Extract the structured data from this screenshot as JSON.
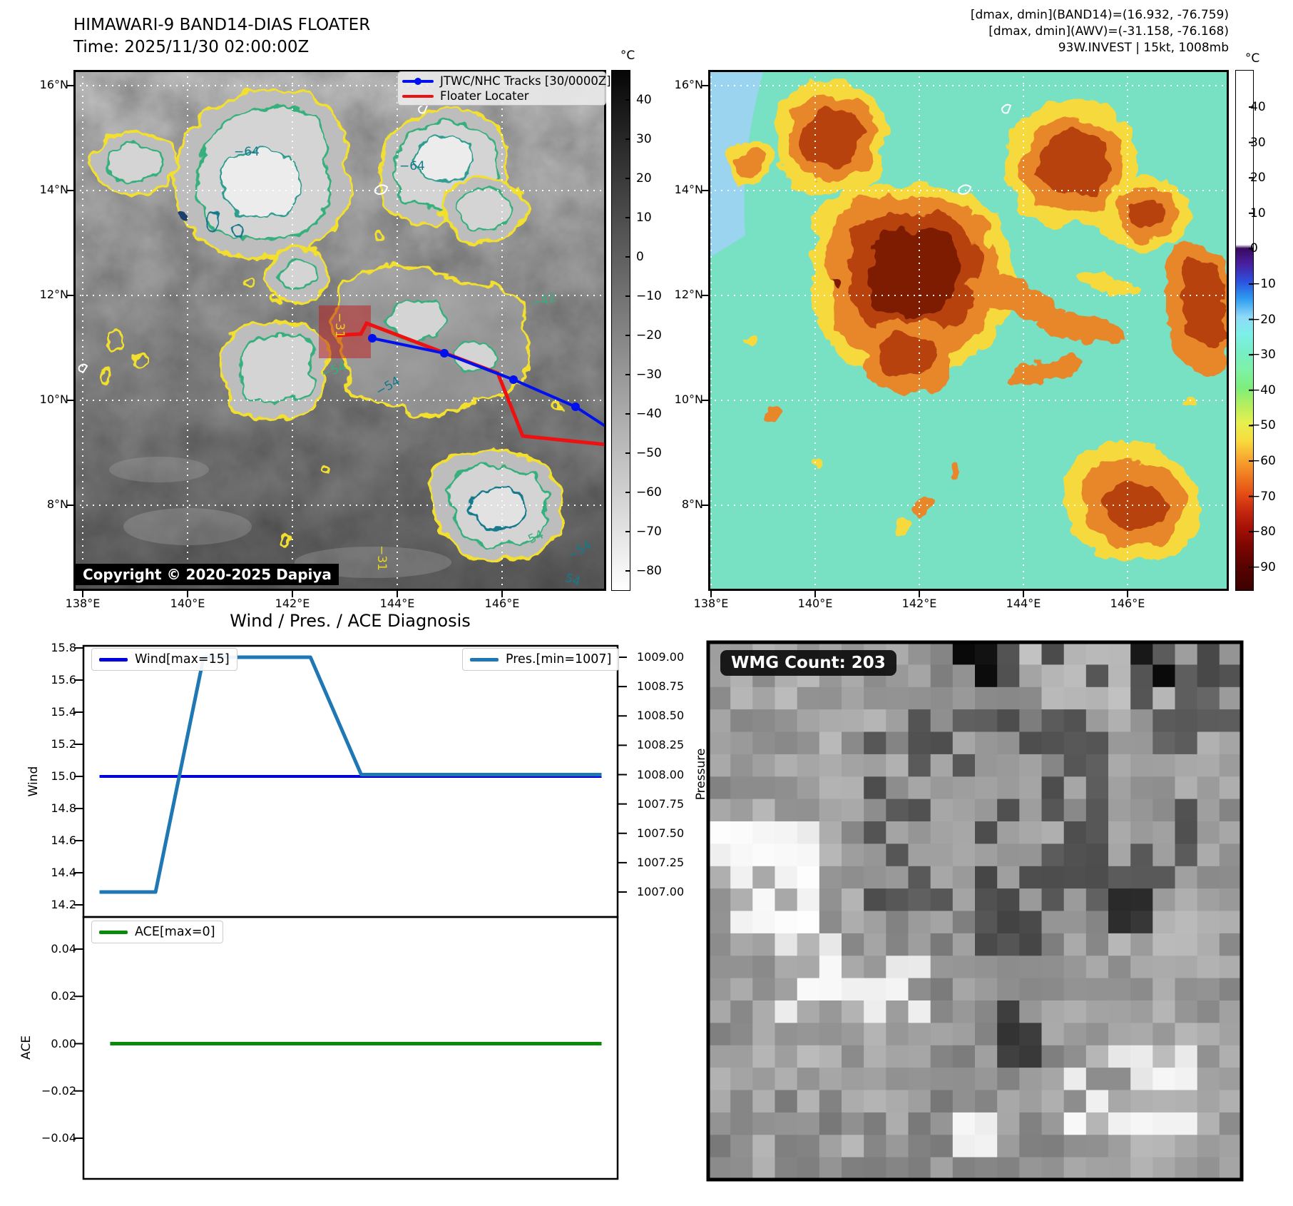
{
  "left_map": {
    "title_line1": "HIMAWARI-9 BAND14-DIAS FLOATER",
    "title_line2": "Time: 2025/11/30 02:00:00Z",
    "legend": [
      {
        "label": "JTWC/NHC Tracks [30/0000Z]",
        "color": "#0011ee"
      },
      {
        "label": "Floater Locater",
        "color": "#ee1111"
      }
    ],
    "copyright": "Copyright © 2020-2025 Dapiya",
    "lat_ticks": [
      "16°N",
      "14°N",
      "12°N",
      "10°N",
      "8°N"
    ],
    "lon_ticks": [
      "138°E",
      "140°E",
      "142°E",
      "144°E",
      "146°E"
    ],
    "colorbar": {
      "unit": "°C",
      "ticks": [
        "40",
        "30",
        "20",
        "10",
        "0",
        "−10",
        "−20",
        "−30",
        "−40",
        "−50",
        "−60",
        "−70",
        "−80"
      ]
    },
    "contour_labels": [
      {
        "text": "−31",
        "color": "#e8d51f"
      },
      {
        "text": "−31",
        "color": "#e8d51f"
      },
      {
        "text": "−42",
        "color": "#35b07c"
      },
      {
        "text": "−64",
        "color": "#137a8c"
      },
      {
        "text": "−64",
        "color": "#137a8c"
      },
      {
        "text": "−54",
        "color": "#35b07c"
      },
      {
        "text": "−54",
        "color": "#137a8c"
      },
      {
        "text": "−54",
        "color": "#35b07c"
      },
      {
        "text": "−54",
        "color": "#137a8c"
      },
      {
        "text": "54",
        "color": "#137a8c"
      }
    ]
  },
  "right_map": {
    "header_line1": "[dmax, dmin](BAND14)=(16.932, -76.759)",
    "header_line2": "[dmax, dmin](AWV)=(-31.158, -76.168)",
    "header_line3": "93W.INVEST | 15kt, 1008mb",
    "lat_ticks": [
      "16°N",
      "14°N",
      "12°N",
      "10°N",
      "8°N"
    ],
    "lon_ticks": [
      "138°E",
      "140°E",
      "142°E",
      "144°E",
      "146°E"
    ],
    "colorbar": {
      "unit": "°C",
      "ticks": [
        "40",
        "30",
        "20",
        "10",
        "0",
        "−10",
        "−20",
        "−30",
        "−40",
        "−50",
        "−60",
        "−70",
        "−80",
        "−90"
      ]
    }
  },
  "diagnosis": {
    "title": "Wind / Pres. / ACE Diagnosis",
    "wind": {
      "legend": "Wind[max=15]",
      "ylabel": "Wind",
      "color": "#0000dd",
      "yticks": [
        "15.8",
        "15.6",
        "15.4",
        "15.2",
        "15.0",
        "14.8",
        "14.6",
        "14.4",
        "14.2"
      ]
    },
    "pressure": {
      "legend": "Pres.[min=1007]",
      "ylabel": "Pressure",
      "color": "#1f77b4",
      "yticks": [
        "1009.00",
        "1008.75",
        "1008.50",
        "1008.25",
        "1008.00",
        "1007.75",
        "1007.50",
        "1007.25",
        "1007.00"
      ]
    },
    "ace": {
      "legend": "ACE[max=0]",
      "ylabel": "ACE",
      "color": "#0a8a0a",
      "yticks": [
        "0.04",
        "0.02",
        "0.00",
        "−0.02",
        "−0.04"
      ]
    }
  },
  "wmg_panel": {
    "label": "WMG Count: 203"
  },
  "chart_data": [
    {
      "type": "line",
      "title": "Wind / Pres. / ACE Diagnosis",
      "x_axis": {
        "label": "",
        "range": [
          0,
          1
        ],
        "tick_labels_visible": false
      },
      "series": [
        {
          "name": "Wind[max=15]",
          "axis": "wind",
          "color": "#0000dd",
          "x": [
            0.03,
            0.97
          ],
          "values": [
            15,
            15
          ]
        },
        {
          "name": "Pres.[min=1007]",
          "axis": "pressure",
          "color": "#1f77b4",
          "x": [
            0.03,
            0.135,
            0.225,
            0.425,
            0.52,
            0.97
          ],
          "values": [
            1007,
            1007,
            1009,
            1009,
            1008,
            1008
          ]
        },
        {
          "name": "ACE[max=0]",
          "axis": "ace",
          "color": "#0a8a0a",
          "x": [
            0.05,
            0.97
          ],
          "values": [
            0,
            0
          ]
        }
      ],
      "axes": {
        "wind": {
          "label": "Wind",
          "lim": [
            14.1,
            15.85
          ],
          "side": "left"
        },
        "pressure": {
          "label": "Pressure",
          "lim": [
            1006.83,
            1009.08
          ],
          "side": "right"
        },
        "ace": {
          "label": "ACE",
          "lim": [
            -0.057,
            0.057
          ],
          "side": "left"
        }
      },
      "legend_position": "inside-top",
      "grid": false
    }
  ]
}
